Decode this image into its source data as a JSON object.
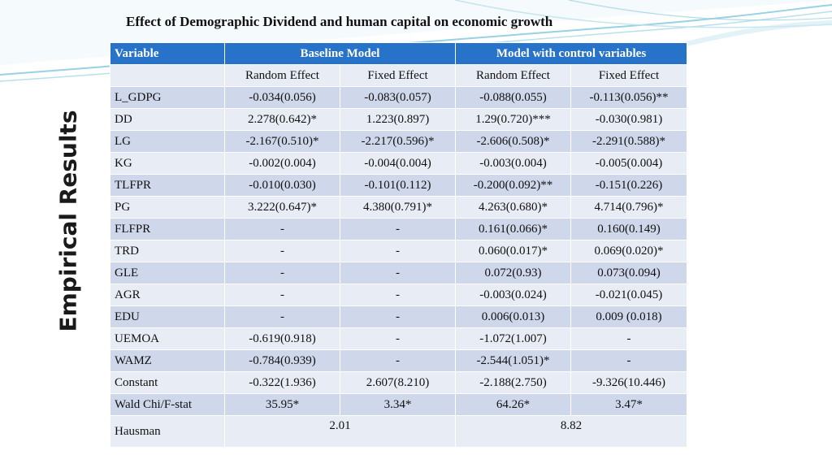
{
  "slide": {
    "title": "Effect of Demographic Dividend and human capital on economic growth",
    "side_title": "Empirical Results"
  },
  "colors": {
    "header_bg": "#2673c9",
    "row_dark": "#cfd7ea",
    "row_light": "#e8ecf5",
    "wave_blue": "#7fc6dd"
  },
  "table": {
    "header": {
      "variable": "Variable",
      "baseline": "Baseline Model",
      "control": "Model with control variables"
    },
    "subheader": [
      "Random Effect",
      "Fixed Effect",
      "Random Effect",
      "Fixed Effect"
    ],
    "rows": [
      {
        "name": "L_GDPG",
        "values": [
          "-0.034(0.056)",
          "-0.083(0.057)",
          "-0.088(0.055)",
          "-0.113(0.056)**"
        ]
      },
      {
        "name": "DD",
        "values": [
          "2.278(0.642)*",
          "1.223(0.897)",
          "1.29(0.720)***",
          "-0.030(0.981)"
        ]
      },
      {
        "name": "LG",
        "values": [
          "-2.167(0.510)*",
          "-2.217(0.596)*",
          "-2.606(0.508)*",
          "-2.291(0.588)*"
        ]
      },
      {
        "name": "KG",
        "values": [
          "-0.002(0.004)",
          "-0.004(0.004)",
          "-0.003(0.004)",
          "-0.005(0.004)"
        ]
      },
      {
        "name": "TLFPR",
        "values": [
          "-0.010(0.030)",
          "-0.101(0.112)",
          "-0.200(0.092)**",
          "-0.151(0.226)"
        ]
      },
      {
        "name": "PG",
        "values": [
          "3.222(0.647)*",
          "4.380(0.791)*",
          "4.263(0.680)*",
          "4.714(0.796)*"
        ]
      },
      {
        "name": "FLFPR",
        "values": [
          "-",
          "-",
          "0.161(0.066)*",
          "0.160(0.149)"
        ]
      },
      {
        "name": "TRD",
        "values": [
          "-",
          "-",
          "0.060(0.017)*",
          "0.069(0.020)*"
        ]
      },
      {
        "name": "GLE",
        "values": [
          "-",
          "-",
          "0.072(0.93)",
          "0.073(0.094)"
        ]
      },
      {
        "name": "AGR",
        "values": [
          "-",
          "-",
          "-0.003(0.024)",
          "-0.021(0.045)"
        ]
      },
      {
        "name": "EDU",
        "values": [
          "-",
          "-",
          "0.006(0.013)",
          "0.009 (0.018)"
        ]
      },
      {
        "name": "UEMOA",
        "values": [
          "-0.619(0.918)",
          "-",
          "-1.072(1.007)",
          "-"
        ]
      },
      {
        "name": "WAMZ",
        "values": [
          "-0.784(0.939)",
          "-",
          "-2.544(1.051)*",
          "-"
        ]
      },
      {
        "name": "Constant",
        "values": [
          "-0.322(1.936)",
          "2.607(8.210)",
          "-2.188(2.750)",
          "-9.326(10.446)"
        ]
      },
      {
        "name": "Wald Chi/F-stat",
        "values": [
          "35.95*",
          "3.34*",
          "64.26*",
          "3.47*"
        ]
      }
    ],
    "hausman": {
      "name": "Hausman",
      "baseline": "2.01",
      "control": "8.82"
    }
  }
}
